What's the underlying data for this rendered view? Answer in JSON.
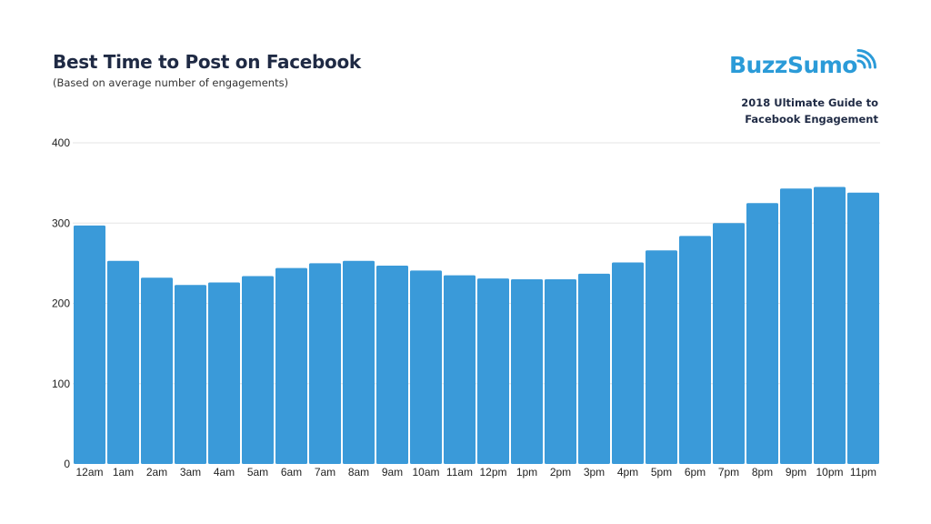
{
  "header": {
    "title": "Best Time to Post on Facebook",
    "subtitle": "(Based on average number of engagements)"
  },
  "brand": {
    "logo_text": "BuzzSumo",
    "guide_line1": "2018 Ultimate Guide to",
    "guide_line2": "Facebook Engagement",
    "logo_color": "#2b9bd8"
  },
  "chart_data": {
    "type": "bar",
    "title": "Best Time to Post on Facebook",
    "subtitle": "(Based on average number of engagements)",
    "xlabel": "",
    "ylabel": "",
    "ylim": [
      0,
      400
    ],
    "yticks": [
      0,
      100,
      200,
      300,
      400
    ],
    "grid": true,
    "bar_color": "#3a9ad9",
    "categories": [
      "12am",
      "1am",
      "2am",
      "3am",
      "4am",
      "5am",
      "6am",
      "7am",
      "8am",
      "9am",
      "10am",
      "11am",
      "12pm",
      "1pm",
      "2pm",
      "3pm",
      "4pm",
      "5pm",
      "6pm",
      "7pm",
      "8pm",
      "9pm",
      "10pm",
      "11pm"
    ],
    "values": [
      297,
      253,
      232,
      223,
      226,
      234,
      244,
      250,
      253,
      247,
      241,
      235,
      231,
      230,
      230,
      237,
      251,
      266,
      284,
      300,
      325,
      343,
      345,
      338
    ]
  }
}
